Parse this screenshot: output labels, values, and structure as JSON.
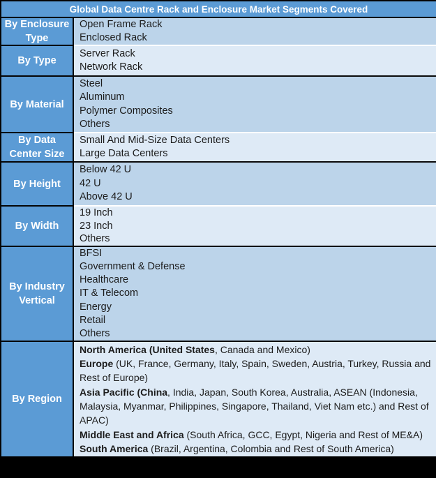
{
  "title": "Global Data Centre Rack and Enclosure Market Segments Covered",
  "colors": {
    "header_blue": "#5B9BD5",
    "row_light_blue": "#BCD4EA",
    "row_lighter_blue": "#DEEAF6",
    "label_text": "#FFFFFF",
    "body_text": "#1C1C1C"
  },
  "sections": [
    {
      "label": "By Enclosure Type",
      "items": [
        "Open Frame Rack",
        "Enclosed Rack"
      ]
    },
    {
      "label": "By Type",
      "items": [
        "Server Rack",
        "Network Rack"
      ]
    },
    {
      "label": "By Material",
      "items": [
        "Steel",
        "Aluminum",
        "Polymer Composites",
        "Others"
      ]
    },
    {
      "label": "By Data Center Size",
      "items": [
        "Small And Mid-Size Data Centers",
        "Large Data Centers"
      ]
    },
    {
      "label": "By Height",
      "items": [
        "Below 42 U",
        "42 U",
        "Above 42 U"
      ]
    },
    {
      "label": "By Width",
      "items": [
        "19 Inch",
        "23 Inch",
        "Others"
      ]
    },
    {
      "label": "By Industry Vertical",
      "items": [
        "BFSI",
        "Government & Defense",
        "Healthcare",
        "IT & Telecom",
        "Energy",
        "Retail",
        "Others"
      ]
    },
    {
      "label": "By Region",
      "lines": [
        {
          "b": "North America (United States",
          "r": ", Canada and Mexico)"
        },
        {
          "b": "Europe",
          "r": " (UK, France, Germany, Italy, Spain, Sweden, Austria, Turkey, Russia and"
        },
        {
          "b": "",
          "r": "Rest of Europe)"
        },
        {
          "b": "Asia Pacific (China",
          "r": ", India, Japan, South Korea, Australia, ASEAN (Indonesia,"
        },
        {
          "b": "",
          "r": "Malaysia, Myanmar, Philippines, Singapore, Thailand, Viet Nam etc.) and Rest of"
        },
        {
          "b": "",
          "r": "APAC)"
        },
        {
          "b": "Middle East and Africa",
          "r": " (South Africa, GCC, Egypt, Nigeria and Rest of ME&A)"
        },
        {
          "b": "South America",
          "r": " (Brazil, Argentina, Colombia and Rest of South America)"
        }
      ]
    }
  ]
}
